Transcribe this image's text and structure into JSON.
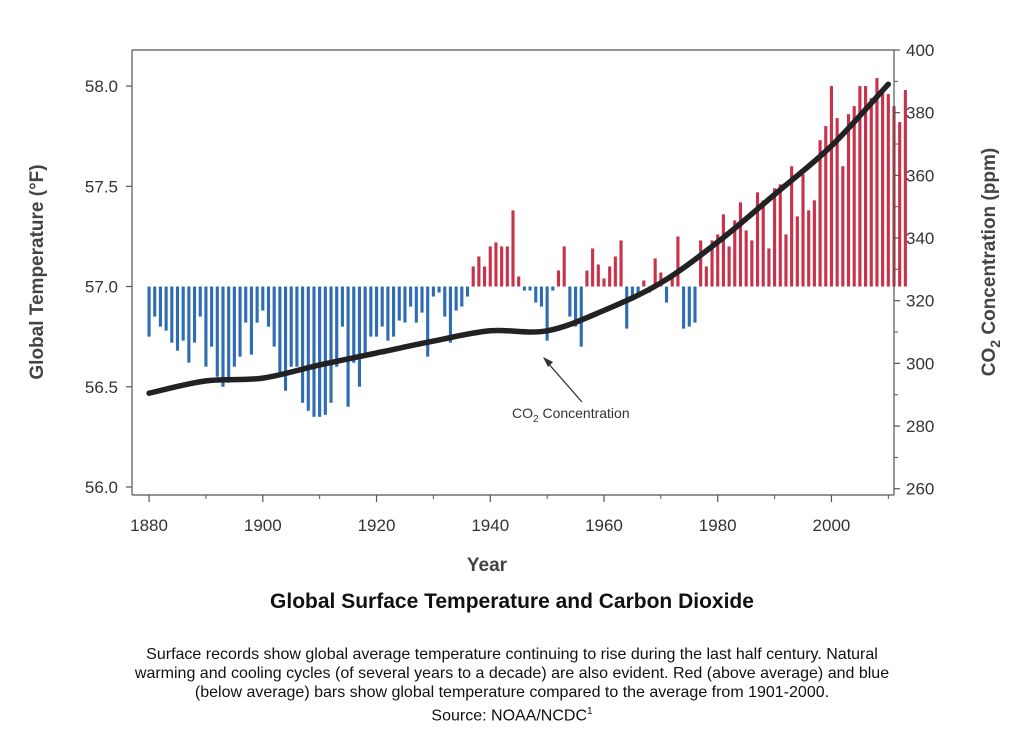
{
  "chart_data": {
    "type": "bar",
    "title": "Global Surface Temperature and Carbon Dioxide",
    "xlabel": "Year",
    "ylabel": "Global Temperature (°F)",
    "y2label_parts": [
      "CO",
      "2",
      " Concentration (ppm)"
    ],
    "xlim": [
      1877,
      2011
    ],
    "ylim": [
      55.96,
      58.18
    ],
    "y2lim": [
      258,
      400
    ],
    "baseline": 57.0,
    "xticks": [
      1880,
      1900,
      1920,
      1940,
      1960,
      1980,
      2000
    ],
    "yticks": [
      56.0,
      56.5,
      57.0,
      57.5,
      58.0
    ],
    "yticks_labels": [
      "56.0",
      "56.5",
      "57.0",
      "57.5",
      "58.0"
    ],
    "y2ticks": [
      260,
      280,
      300,
      320,
      340,
      360,
      380,
      400
    ],
    "bar_colors": {
      "above": "#c8324a",
      "below": "#2f6db3"
    },
    "line_color": "#222222",
    "temperature": {
      "years_start": 1880,
      "values": [
        56.75,
        56.85,
        56.8,
        56.78,
        56.72,
        56.68,
        56.73,
        56.62,
        56.72,
        56.85,
        56.6,
        56.7,
        56.55,
        56.5,
        56.52,
        56.6,
        56.65,
        56.82,
        56.66,
        56.82,
        56.88,
        56.8,
        56.7,
        56.55,
        56.48,
        56.6,
        56.6,
        56.42,
        56.38,
        56.35,
        56.35,
        56.36,
        56.42,
        56.6,
        56.8,
        56.4,
        56.62,
        56.5,
        56.67,
        56.75,
        56.75,
        56.8,
        56.73,
        56.75,
        56.83,
        56.82,
        56.9,
        56.82,
        56.87,
        56.65,
        56.95,
        56.97,
        56.85,
        56.72,
        56.88,
        56.9,
        56.95,
        57.1,
        57.15,
        57.1,
        57.2,
        57.22,
        57.2,
        57.2,
        57.38,
        57.05,
        56.98,
        56.98,
        56.92,
        56.9,
        56.73,
        56.98,
        57.08,
        57.2,
        56.85,
        56.8,
        56.7,
        57.08,
        57.19,
        57.11,
        57.04,
        57.1,
        57.15,
        57.23,
        56.79,
        56.93,
        56.96,
        57.03,
        56.97,
        57.14,
        57.07,
        56.92,
        57.05,
        57.25,
        56.79,
        56.8,
        56.82,
        57.23,
        57.1,
        57.23,
        57.26,
        57.36,
        57.2,
        57.33,
        57.42,
        57.28,
        57.23,
        57.47,
        57.43,
        57.19,
        57.49,
        57.51,
        57.26,
        57.6,
        57.35,
        57.56,
        57.38,
        57.43,
        57.73,
        57.8,
        58.0,
        57.84,
        57.6,
        57.86,
        57.9,
        58.0,
        58.0,
        57.94,
        58.04,
        57.98,
        57.96,
        57.9,
        57.82,
        57.98
      ]
    },
    "co2": {
      "x": [
        1880,
        1890,
        1900,
        1910,
        1920,
        1930,
        1940,
        1950,
        1960,
        1970,
        1980,
        1990,
        2000,
        2010
      ],
      "values": [
        290.5,
        294.4,
        295.3,
        299.5,
        303.3,
        307.1,
        310.4,
        310.4,
        316.9,
        325.7,
        338.7,
        353.9,
        369.4,
        389.1
      ]
    },
    "annotation": {
      "text_main": "CO",
      "text_sub": "2",
      "text_tail": " Concentration"
    }
  },
  "caption": {
    "lines": [
      "Surface records show global average temperature continuing to rise during the last half century. Natural",
      "warming and cooling cycles (of several years to a decade) are also evident. Red (above average) and blue",
      "(below average) bars show global temperature compared to the average from 1901-2000."
    ],
    "source": "Source: NOAA/NCDC",
    "source_sup": "1"
  }
}
